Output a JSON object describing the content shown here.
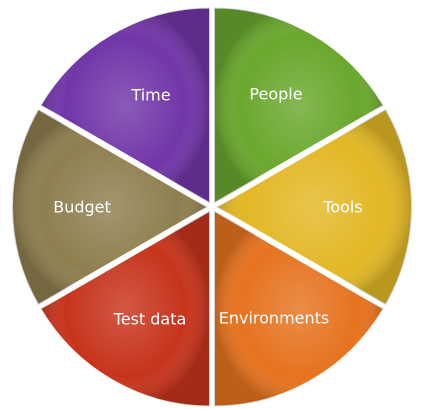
{
  "diagram": {
    "type": "segmented-wheel",
    "segments": [
      {
        "label": "People",
        "color": "#6aa82e"
      },
      {
        "label": "Tools",
        "color": "#e3b826"
      },
      {
        "label": "Environments",
        "color": "#e6731f"
      },
      {
        "label": "Test data",
        "color": "#c7341c"
      },
      {
        "label": "Budget",
        "color": "#8f7f4f"
      },
      {
        "label": "Time",
        "color": "#7236a8"
      }
    ]
  }
}
